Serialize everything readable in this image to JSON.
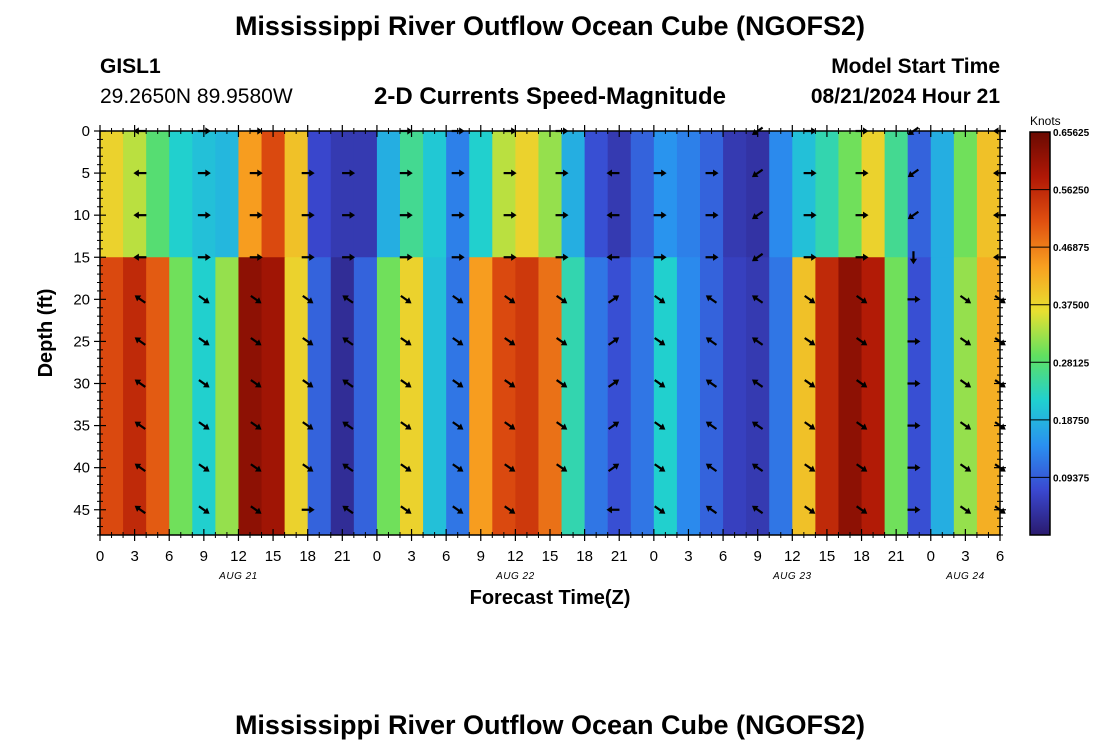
{
  "header": {
    "title": "Mississippi River Outflow Ocean Cube (NGOFS2)",
    "station_id": "GISL1",
    "station_coords": "29.2650N  89.9580W",
    "subtitle": "2-D Currents Speed-Magnitude",
    "model_start_label": "Model Start Time",
    "model_start_value": "08/21/2024 Hour 21"
  },
  "footer": {
    "title": "Mississippi River Outflow Ocean Cube (NGOFS2)"
  },
  "chart_data": {
    "type": "heatmap",
    "title": "2-D Currents Speed-Magnitude",
    "xlabel": "Forecast Time(Z)",
    "ylabel": "Depth (ft)",
    "x_range_hours": [
      0,
      78
    ],
    "x_tick_step_hours": 3,
    "x_tick_labels": [
      "0",
      "3",
      "6",
      "9",
      "12",
      "15",
      "18",
      "21",
      "0",
      "3",
      "6",
      "9",
      "12",
      "15",
      "18",
      "21",
      "0",
      "3",
      "6",
      "9",
      "12",
      "15",
      "18",
      "21",
      "0",
      "3",
      "6"
    ],
    "date_labels": [
      {
        "hour": 12,
        "text": "AUG 21"
      },
      {
        "hour": 36,
        "text": "AUG 22"
      },
      {
        "hour": 60,
        "text": "AUG 23"
      },
      {
        "hour": 75,
        "text": "AUG 24"
      }
    ],
    "ylim": [
      0,
      48
    ],
    "y_ticks": [
      0,
      5,
      10,
      15,
      20,
      25,
      30,
      35,
      40,
      45
    ],
    "colorbar": {
      "label": "Knots",
      "min": 0,
      "max": 0.65625,
      "tick_values": [
        0.65625,
        0.5625,
        0.46875,
        0.375,
        0.28125,
        0.1875,
        0.09375
      ],
      "tick_labels": [
        "0.65625",
        "0.56250",
        "0.46875",
        "0.37500",
        "0.28125",
        "0.18750",
        "0.09375"
      ],
      "colors": [
        "#2a1a6e",
        "#3a48d0",
        "#2a90f0",
        "#20d0d0",
        "#60e060",
        "#e8e030",
        "#f8a020",
        "#e05010",
        "#b01806",
        "#6a0a02"
      ]
    },
    "speed_grid": {
      "x_hours": [
        0,
        2,
        4,
        6,
        8,
        10,
        12,
        14,
        16,
        18,
        20,
        22,
        24,
        26,
        28,
        30,
        32,
        34,
        36,
        38,
        40,
        42,
        44,
        46,
        48,
        50,
        52,
        54,
        56,
        58,
        60,
        62,
        64,
        66,
        68,
        70,
        72,
        74,
        76,
        78
      ],
      "upper_layer": {
        "depth_range_ft": [
          0,
          15
        ],
        "speeds": [
          0.38,
          0.34,
          0.28,
          0.22,
          0.2,
          0.19,
          0.44,
          0.52,
          0.4,
          0.07,
          0.05,
          0.05,
          0.18,
          0.26,
          0.21,
          0.13,
          0.22,
          0.34,
          0.38,
          0.32,
          0.18,
          0.08,
          0.05,
          0.1,
          0.15,
          0.13,
          0.1,
          0.05,
          0.04,
          0.14,
          0.2,
          0.24,
          0.3,
          0.38,
          0.26,
          0.1,
          0.18,
          0.3,
          0.4,
          0.42
        ]
      },
      "lower_layer": {
        "depth_range_ft": [
          15,
          48
        ],
        "speeds": [
          0.52,
          0.56,
          0.5,
          0.3,
          0.22,
          0.32,
          0.62,
          0.6,
          0.38,
          0.1,
          0.03,
          0.1,
          0.3,
          0.38,
          0.2,
          0.12,
          0.44,
          0.52,
          0.54,
          0.48,
          0.24,
          0.12,
          0.08,
          0.12,
          0.22,
          0.14,
          0.1,
          0.06,
          0.05,
          0.12,
          0.4,
          0.56,
          0.62,
          0.58,
          0.3,
          0.08,
          0.18,
          0.32,
          0.42,
          0.44
        ]
      }
    },
    "vectors": [
      {
        "hour": 3.5,
        "depths": [
          0,
          5,
          10,
          15
        ],
        "dir": "left"
      },
      {
        "hour": 3.5,
        "depths": [
          20,
          25,
          30,
          35,
          40,
          45
        ],
        "dir": "up-left"
      },
      {
        "hour": 9,
        "depths": [
          0,
          5,
          10,
          15
        ],
        "dir": "right"
      },
      {
        "hour": 9,
        "depths": [
          20,
          25,
          30,
          35,
          40,
          45
        ],
        "dir": "down-right"
      },
      {
        "hour": 13.5,
        "depths": [
          0,
          5,
          10,
          15
        ],
        "dir": "right"
      },
      {
        "hour": 13.5,
        "depths": [
          20,
          25,
          30,
          35,
          40,
          45
        ],
        "dir": "down-right"
      },
      {
        "hour": 18,
        "depths": [
          5,
          10,
          15,
          45
        ],
        "dir": "right"
      },
      {
        "hour": 18,
        "depths": [
          20,
          25,
          30,
          35,
          40
        ],
        "dir": "down-right"
      },
      {
        "hour": 21.5,
        "depths": [
          5,
          10,
          15
        ],
        "dir": "right"
      },
      {
        "hour": 21.5,
        "depths": [
          20,
          25,
          30,
          35,
          40,
          45
        ],
        "dir": "up-left"
      },
      {
        "hour": 26.5,
        "depths": [
          0,
          5,
          10,
          15
        ],
        "dir": "right"
      },
      {
        "hour": 26.5,
        "depths": [
          20,
          25,
          30,
          35,
          40,
          45
        ],
        "dir": "down-right"
      },
      {
        "hour": 31,
        "depths": [
          0,
          5,
          10,
          15
        ],
        "dir": "right"
      },
      {
        "hour": 31,
        "depths": [
          20,
          25,
          30,
          35,
          40,
          45
        ],
        "dir": "down-right"
      },
      {
        "hour": 35.5,
        "depths": [
          0,
          5,
          10,
          15
        ],
        "dir": "right"
      },
      {
        "hour": 35.5,
        "depths": [
          20,
          25,
          30,
          35,
          40,
          45
        ],
        "dir": "down-right"
      },
      {
        "hour": 40,
        "depths": [
          0,
          5,
          10,
          15
        ],
        "dir": "right"
      },
      {
        "hour": 40,
        "depths": [
          20,
          25,
          30,
          35,
          40
        ],
        "dir": "down-right"
      },
      {
        "hour": 44.5,
        "depths": [
          5,
          10,
          15
        ],
        "dir": "left"
      },
      {
        "hour": 44.5,
        "depths": [
          20,
          25,
          30,
          35,
          40
        ],
        "dir": "up-right"
      },
      {
        "hour": 44.5,
        "depths": [
          45
        ],
        "dir": "left"
      },
      {
        "hour": 48.5,
        "depths": [
          5,
          10,
          15
        ],
        "dir": "right"
      },
      {
        "hour": 48.5,
        "depths": [
          20,
          25,
          30,
          35,
          40,
          45
        ],
        "dir": "down-right"
      },
      {
        "hour": 53,
        "depths": [
          5,
          10,
          15
        ],
        "dir": "right"
      },
      {
        "hour": 53,
        "depths": [
          20,
          25,
          30,
          35,
          40,
          45
        ],
        "dir": "up-left"
      },
      {
        "hour": 57,
        "depths": [
          0,
          5,
          10,
          15
        ],
        "dir": "down-left"
      },
      {
        "hour": 57,
        "depths": [
          20,
          25,
          30,
          35,
          40,
          45
        ],
        "dir": "up-left"
      },
      {
        "hour": 61.5,
        "depths": [
          0,
          5,
          10,
          15
        ],
        "dir": "right"
      },
      {
        "hour": 61.5,
        "depths": [
          20,
          25,
          30,
          35,
          40,
          45
        ],
        "dir": "down-right"
      },
      {
        "hour": 66,
        "depths": [
          0,
          5,
          10,
          15
        ],
        "dir": "right"
      },
      {
        "hour": 66,
        "depths": [
          20,
          25,
          30,
          35,
          40,
          45
        ],
        "dir": "down-right"
      },
      {
        "hour": 70.5,
        "depths": [
          0,
          5,
          10
        ],
        "dir": "down-left"
      },
      {
        "hour": 70.5,
        "depths": [
          15
        ],
        "dir": "down"
      },
      {
        "hour": 70.5,
        "depths": [
          20,
          25,
          30,
          35,
          40,
          45
        ],
        "dir": "right"
      },
      {
        "hour": 75,
        "depths": [
          20,
          25,
          30,
          35,
          40,
          45
        ],
        "dir": "down-right"
      },
      {
        "hour": 78,
        "depths": [
          0,
          5,
          10,
          15
        ],
        "dir": "left"
      },
      {
        "hour": 78,
        "depths": [
          20,
          25,
          30,
          35,
          40,
          45
        ],
        "dir": "down-right"
      }
    ]
  }
}
